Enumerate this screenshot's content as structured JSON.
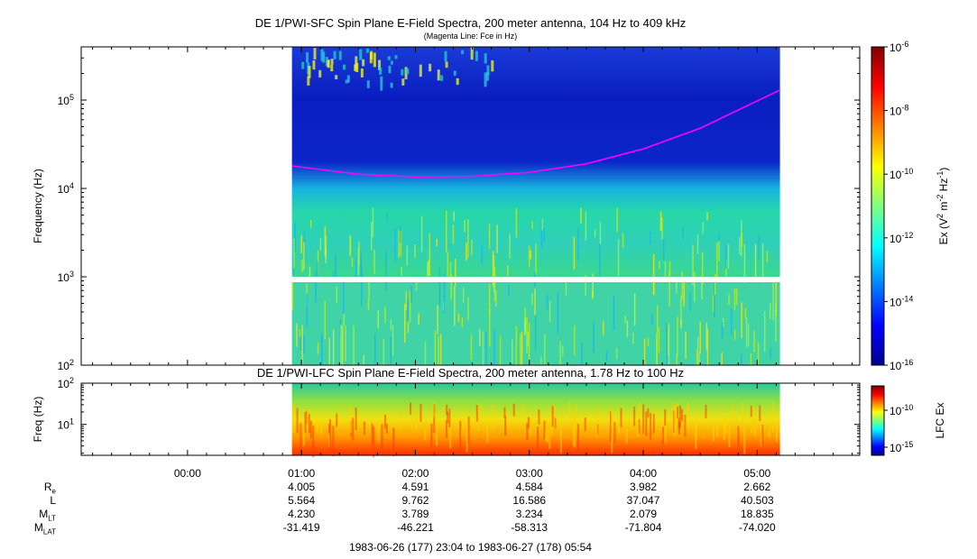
{
  "chart_data": [
    {
      "type": "heatmap",
      "title": "DE 1/PWI-SFC  Spin Plane E-Field Spectra, 200 meter antenna, 104 Hz to 409 kHz",
      "subtitle": "(Magenta Line: Fce in Hz)",
      "ylabel": "Frequency (Hz)",
      "ylim": [
        100,
        400000
      ],
      "y_scale": "log",
      "y_ticks": [
        "10^2",
        "10^3",
        "10^4",
        "10^5"
      ],
      "colorbar": {
        "label": "Ex (V² m⁻² Hz⁻¹)",
        "label_parts": {
          "prefix": "Ex (V",
          "sq": "2",
          "mid": " m",
          "neg2": "-2",
          "hz": " Hz",
          "neg1": "-1",
          "close": ")"
        },
        "scale": "log",
        "range": [
          1e-16,
          1e-06
        ],
        "ticks": [
          {
            "mantissa": "10",
            "exp": "-6"
          },
          {
            "mantissa": "10",
            "exp": "-8"
          },
          {
            "mantissa": "10",
            "exp": "-10"
          },
          {
            "mantissa": "10",
            "exp": "-12"
          },
          {
            "mantissa": "10",
            "exp": "-14"
          },
          {
            "mantissa": "10",
            "exp": "-16"
          }
        ]
      },
      "data_coverage": {
        "start": "00:55",
        "end": "05:12"
      },
      "fce_line": {
        "name": "Fce",
        "color": "#ff00ff",
        "points": [
          {
            "t": "00:55",
            "f": 18000
          },
          {
            "t": "01:30",
            "f": 14500
          },
          {
            "t": "02:00",
            "f": 13500
          },
          {
            "t": "02:30",
            "f": 13700
          },
          {
            "t": "03:00",
            "f": 15200
          },
          {
            "t": "03:30",
            "f": 19000
          },
          {
            "t": "04:00",
            "f": 28000
          },
          {
            "t": "04:30",
            "f": 48000
          },
          {
            "t": "05:12",
            "f": 130000
          }
        ]
      }
    },
    {
      "type": "heatmap",
      "title": "DE 1/PWI-LFC  Spin Plane E-Field Spectra, 200 meter antenna, 1.78 Hz to 100 Hz",
      "ylabel": "Freq (Hz)",
      "ylim": [
        1.78,
        100
      ],
      "y_scale": "log",
      "y_ticks": [
        {
          "mantissa": "10",
          "exp": "2"
        },
        {
          "mantissa": "10",
          "exp": "1"
        }
      ],
      "colorbar": {
        "label": "LFC Ex",
        "scale": "log",
        "ticks": [
          {
            "mantissa": "10",
            "exp": "-10"
          },
          {
            "mantissa": "10",
            "exp": "-15"
          }
        ]
      },
      "data_coverage": {
        "start": "00:55",
        "end": "05:12"
      }
    }
  ],
  "x_axis": {
    "ticks": [
      "00:00",
      "01:00",
      "02:00",
      "03:00",
      "04:00",
      "05:00"
    ]
  },
  "ephemeris": {
    "rows": [
      {
        "label": "R",
        "sub": "e",
        "values": [
          "4.005",
          "4.591",
          "4.584",
          "3.982",
          "2.662"
        ]
      },
      {
        "label": "L",
        "sub": "",
        "values": [
          "5.564",
          "9.762",
          "16.586",
          "37.047",
          "40.503"
        ]
      },
      {
        "label": "M",
        "sub": "LT",
        "values": [
          "4.230",
          "3.789",
          "3.234",
          "2.079",
          "18.835"
        ]
      },
      {
        "label": "M",
        "sub": "LAT",
        "values": [
          "-31.419",
          "-46.221",
          "-58.313",
          "-71.804",
          "-74.020"
        ]
      }
    ]
  },
  "time_range": "1983-06-26 (177) 23:04 to 1983-06-27 (178) 05:54"
}
